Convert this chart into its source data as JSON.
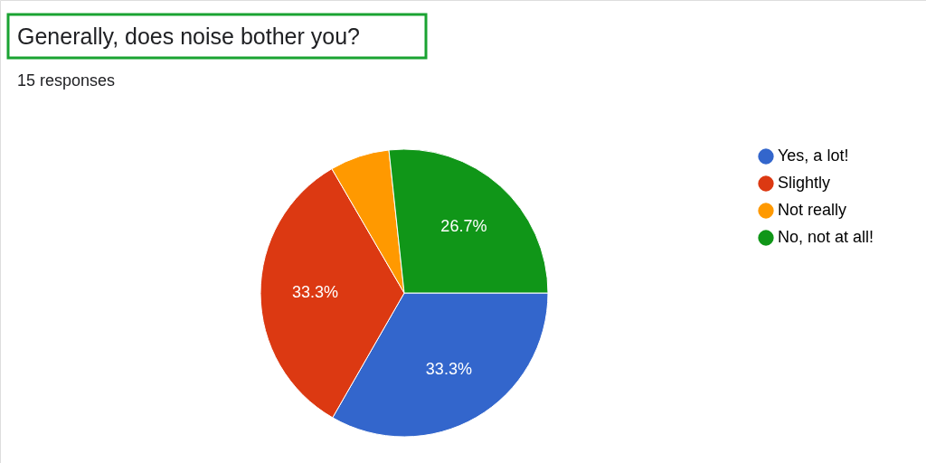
{
  "chart_data": {
    "type": "pie",
    "title": "Generally, does noise bother you?",
    "subtitle": "15 responses",
    "categories": [
      "Yes, a lot!",
      "Slightly",
      "Not really",
      "No, not at all!"
    ],
    "values": [
      33.3,
      33.3,
      6.7,
      26.7
    ],
    "colors": [
      "#3366cc",
      "#dc3912",
      "#ff9900",
      "#109618"
    ],
    "value_labels": [
      "33.3%",
      "33.3%",
      null,
      "26.7%"
    ],
    "legend": "right"
  }
}
